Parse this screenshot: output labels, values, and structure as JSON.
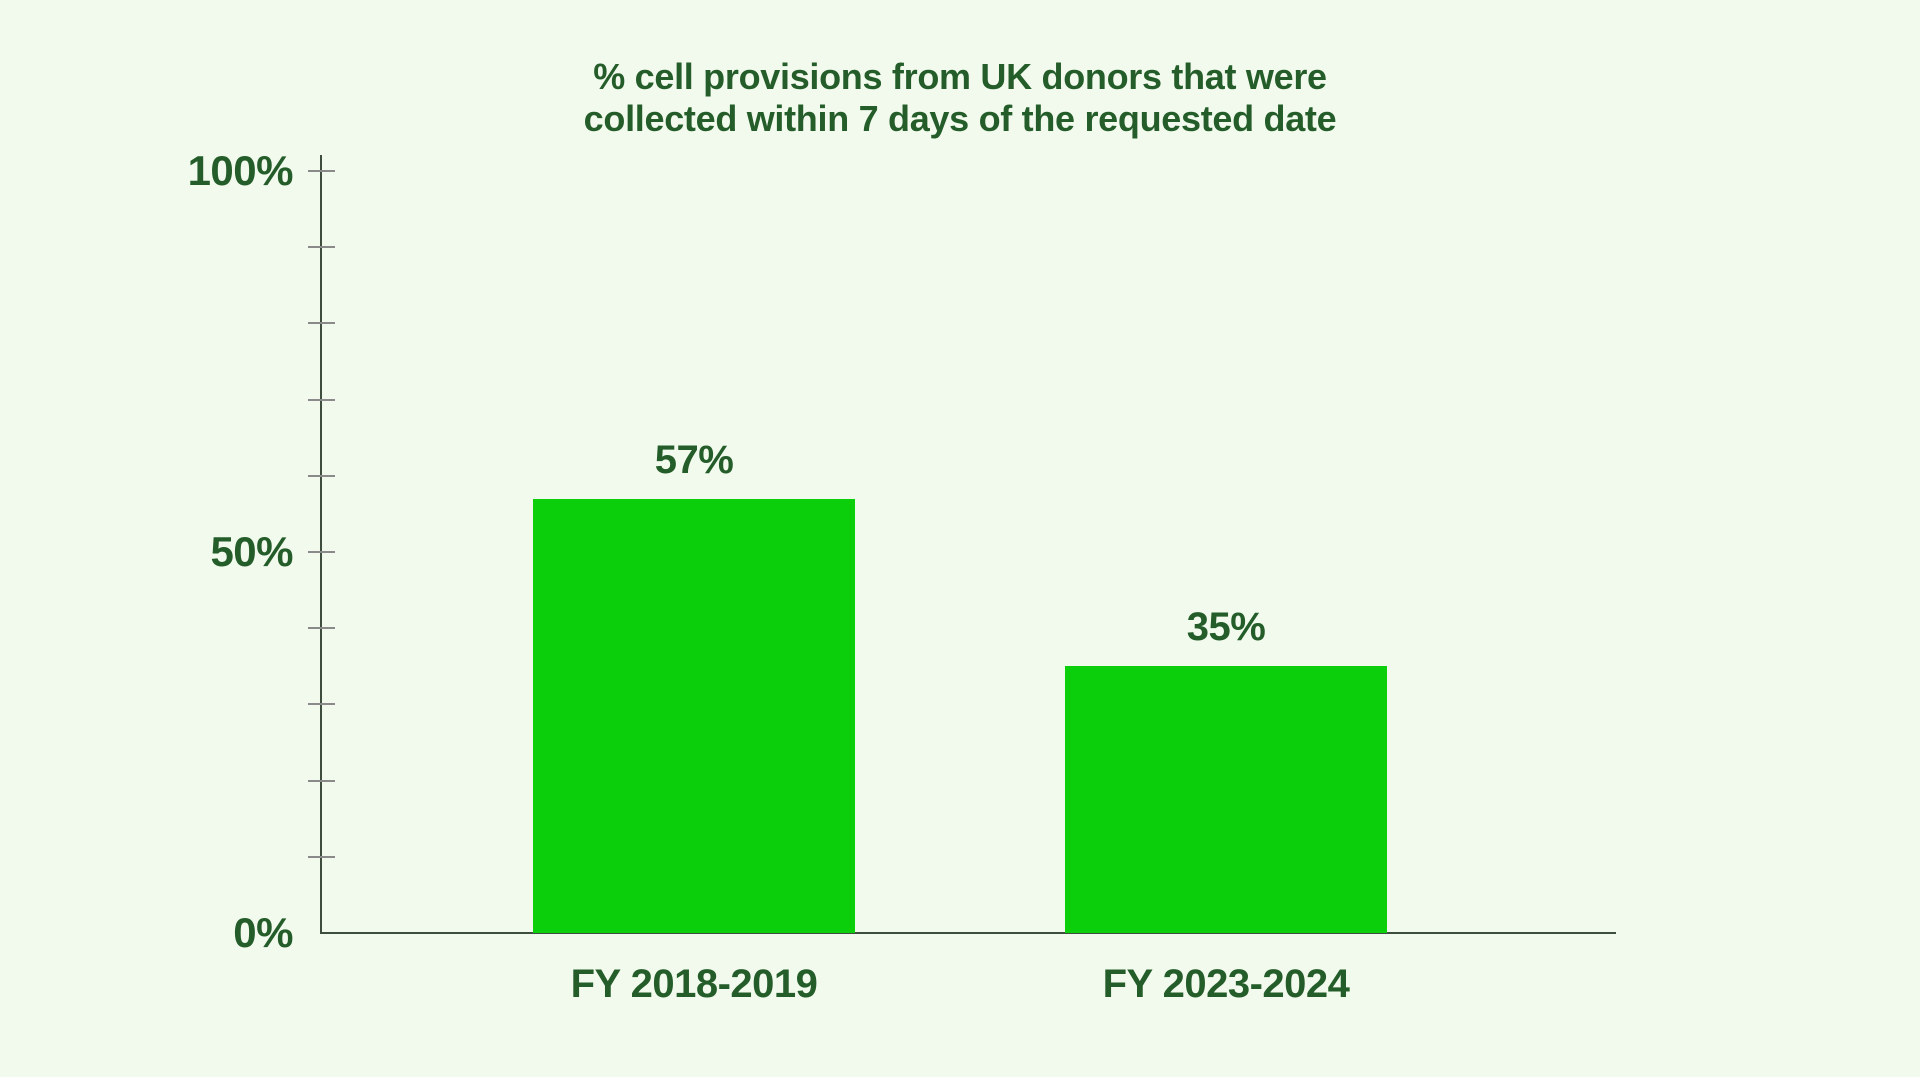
{
  "title": {
    "line1": "% cell provisions from UK donors that were",
    "line2": "collected within 7 days of the requested date"
  },
  "chart_data": {
    "type": "bar",
    "title": "% cell provisions from UK donors that were collected within 7 days of the requested date",
    "categories": [
      "FY 2018-2019",
      "FY 2023-2024"
    ],
    "values": [
      57,
      35
    ],
    "value_labels": [
      "57%",
      "35%"
    ],
    "xlabel": "",
    "ylabel": "",
    "ylim": [
      0,
      100
    ],
    "ytick_interval": 10,
    "yticks_labeled": [
      {
        "value": 100,
        "label": "100%"
      },
      {
        "value": 50,
        "label": "50%"
      },
      {
        "value": 0,
        "label": "0%"
      }
    ],
    "grid": false,
    "legend": "none",
    "colors": {
      "background": "#F1FAED",
      "bar": "#0BCF0B",
      "text": "#245D29",
      "axis": "#3E4D3E",
      "tick": "#8A8A8A"
    }
  }
}
